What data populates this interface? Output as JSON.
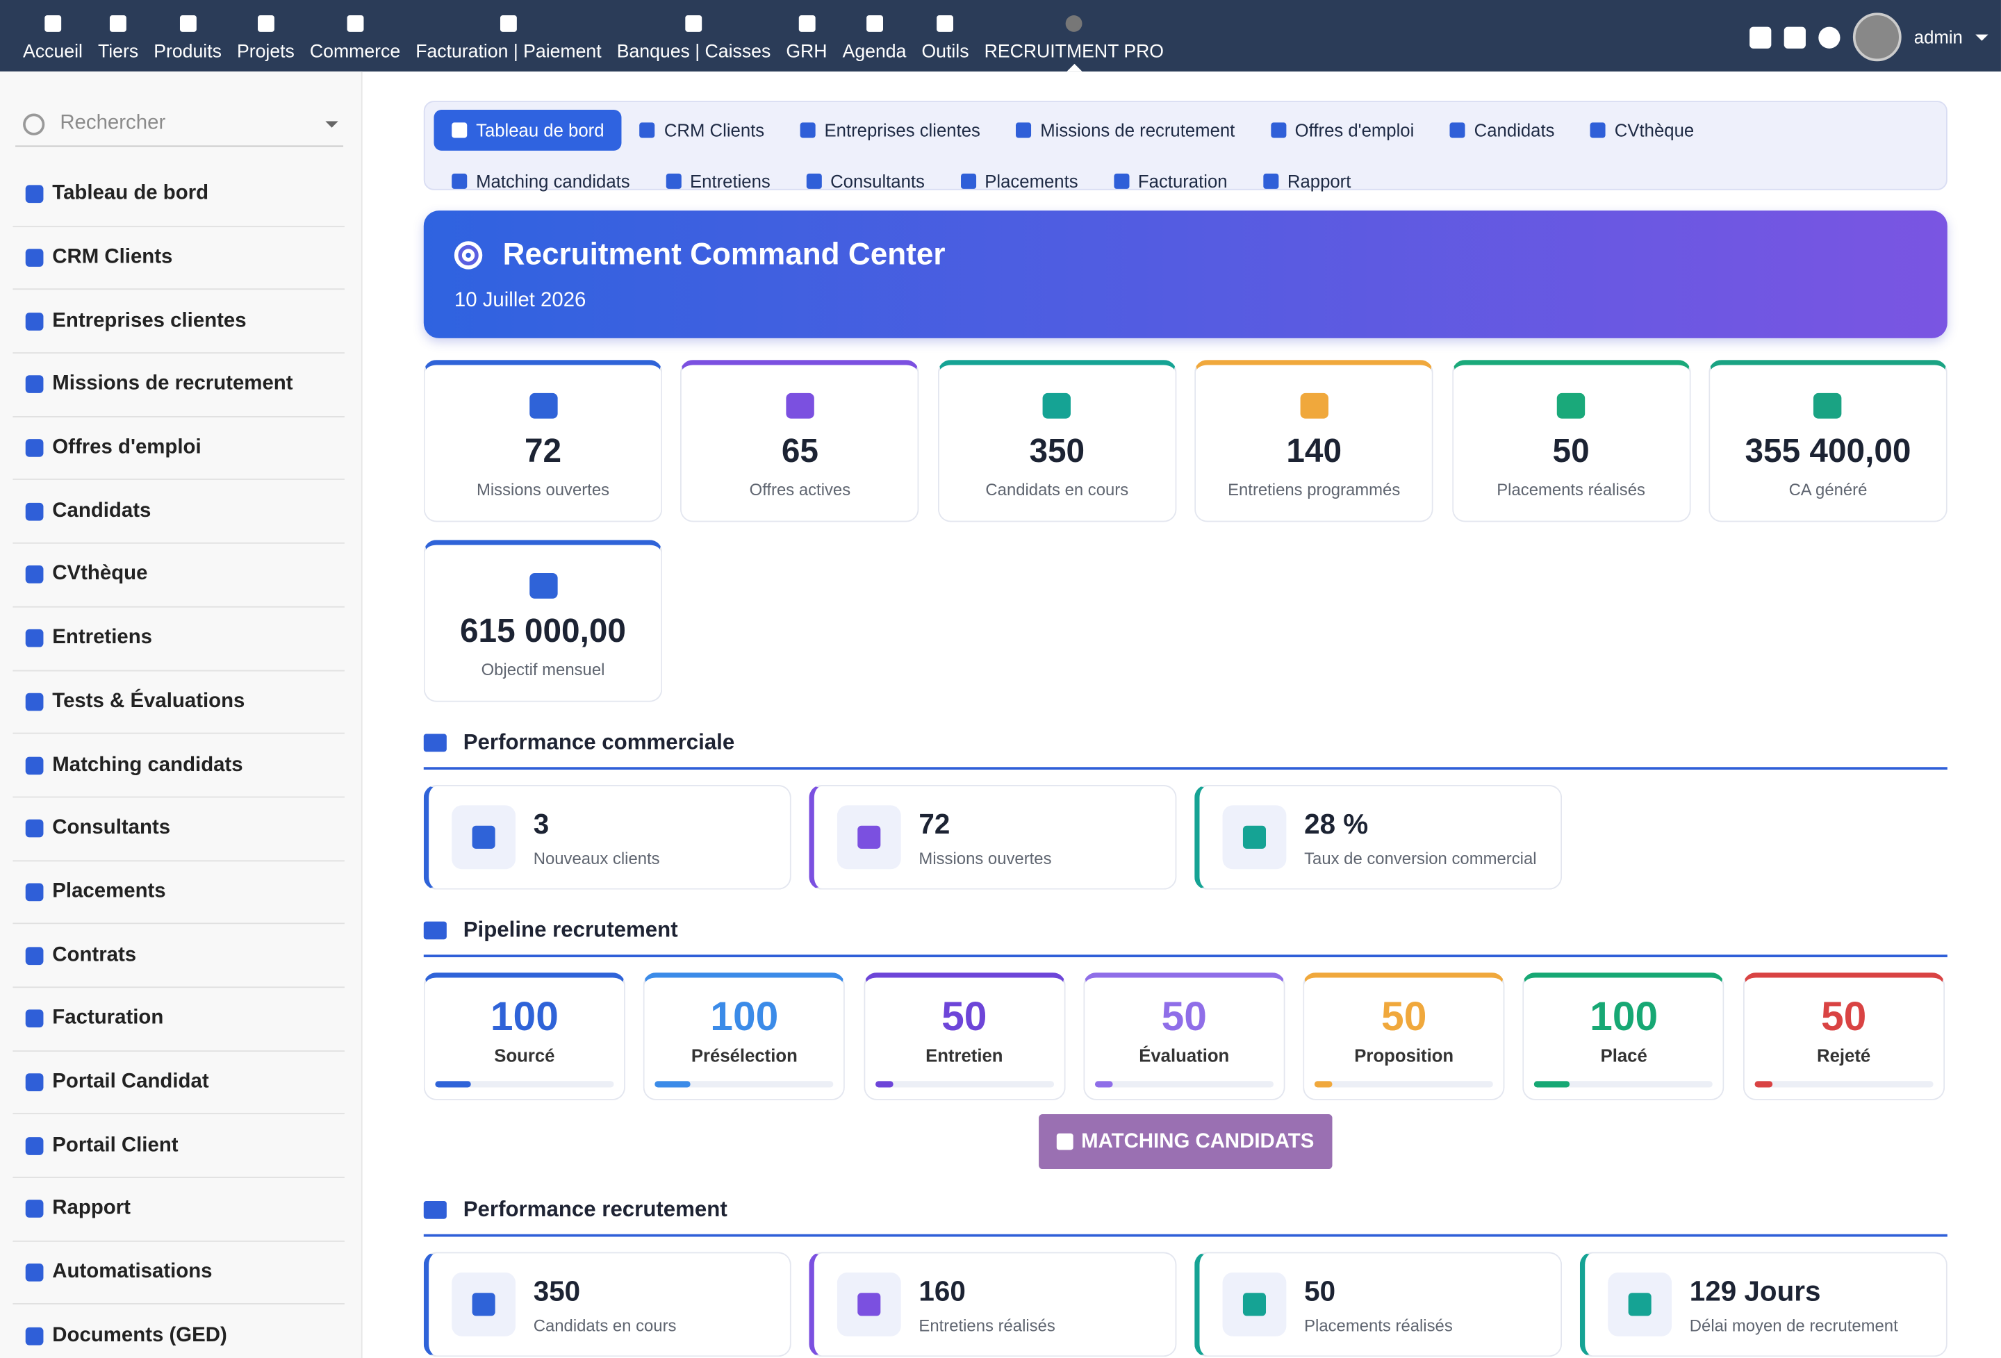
{
  "top_nav": {
    "items": [
      "Accueil",
      "Tiers",
      "Produits",
      "Projets",
      "Commerce",
      "Facturation | Paiement",
      "Banques | Caisses",
      "GRH",
      "Agenda",
      "Outils",
      "RECRUITMENT PRO"
    ],
    "user": "admin"
  },
  "sidebar": {
    "search_placeholder": "Rechercher",
    "items": [
      "Tableau de bord",
      "CRM Clients",
      "Entreprises clientes",
      "Missions de recrutement",
      "Offres d'emploi",
      "Candidats",
      "CVthèque",
      "Entretiens",
      "Tests & Évaluations",
      "Matching candidats",
      "Consultants",
      "Placements",
      "Contrats",
      "Facturation",
      "Portail Candidat",
      "Portail Client",
      "Rapport",
      "Automatisations",
      "Documents (GED)"
    ]
  },
  "tabs": [
    "Tableau de bord",
    "CRM Clients",
    "Entreprises clientes",
    "Missions de recrutement",
    "Offres d'emploi",
    "Candidats",
    "CVthèque",
    "Matching candidats",
    "Entretiens",
    "Consultants",
    "Placements",
    "Facturation",
    "Rapport"
  ],
  "banner": {
    "title": "Recruitment Command Center",
    "date": "10 Juillet 2026"
  },
  "kpis": [
    {
      "value": "72",
      "label": "Missions ouvertes",
      "color": "#2f63d8"
    },
    {
      "value": "65",
      "label": "Offres actives",
      "color": "#7b50e0"
    },
    {
      "value": "350",
      "label": "Candidats en cours",
      "color": "#15a394"
    },
    {
      "value": "140",
      "label": "Entretiens programmés",
      "color": "#f0a83c"
    },
    {
      "value": "50",
      "label": "Placements réalisés",
      "color": "#1aa97a"
    },
    {
      "value": "355 400,00",
      "label": "CA généré",
      "color": "#1aa383"
    },
    {
      "value": "615 000,00",
      "label": "Objectif mensuel",
      "color": "#2f63d8"
    }
  ],
  "commercial": {
    "title": "Performance commerciale",
    "cards": [
      {
        "value": "3",
        "label": "Nouveaux clients",
        "color": "#2f63d8"
      },
      {
        "value": "72",
        "label": "Missions ouvertes",
        "color": "#7b50e0"
      },
      {
        "value": "28 %",
        "label": "Taux de conversion commercial",
        "color": "#15a394"
      }
    ]
  },
  "pipeline": {
    "title": "Pipeline recrutement",
    "stages": [
      {
        "value": 100,
        "label": "Sourcé",
        "color": "#2f63d8"
      },
      {
        "value": 100,
        "label": "Présélection",
        "color": "#3b8be8"
      },
      {
        "value": 50,
        "label": "Entretien",
        "color": "#6d45d8"
      },
      {
        "value": 50,
        "label": "Évaluation",
        "color": "#8f6ee8"
      },
      {
        "value": 50,
        "label": "Proposition",
        "color": "#f0a83c"
      },
      {
        "value": 100,
        "label": "Placé",
        "color": "#17a874"
      },
      {
        "value": 50,
        "label": "Rejeté",
        "color": "#d94343"
      }
    ],
    "button": "MATCHING CANDIDATS"
  },
  "recruitment": {
    "title": "Performance recrutement",
    "cards": [
      {
        "value": "350",
        "label": "Candidats en cours",
        "color": "#2f63d8"
      },
      {
        "value": "160",
        "label": "Entretiens réalisés",
        "color": "#7b50e0"
      },
      {
        "value": "50",
        "label": "Placements réalisés",
        "color": "#15a394"
      },
      {
        "value": "129 Jours",
        "label": "Délai moyen de recrutement",
        "color": "#15a394"
      }
    ]
  }
}
